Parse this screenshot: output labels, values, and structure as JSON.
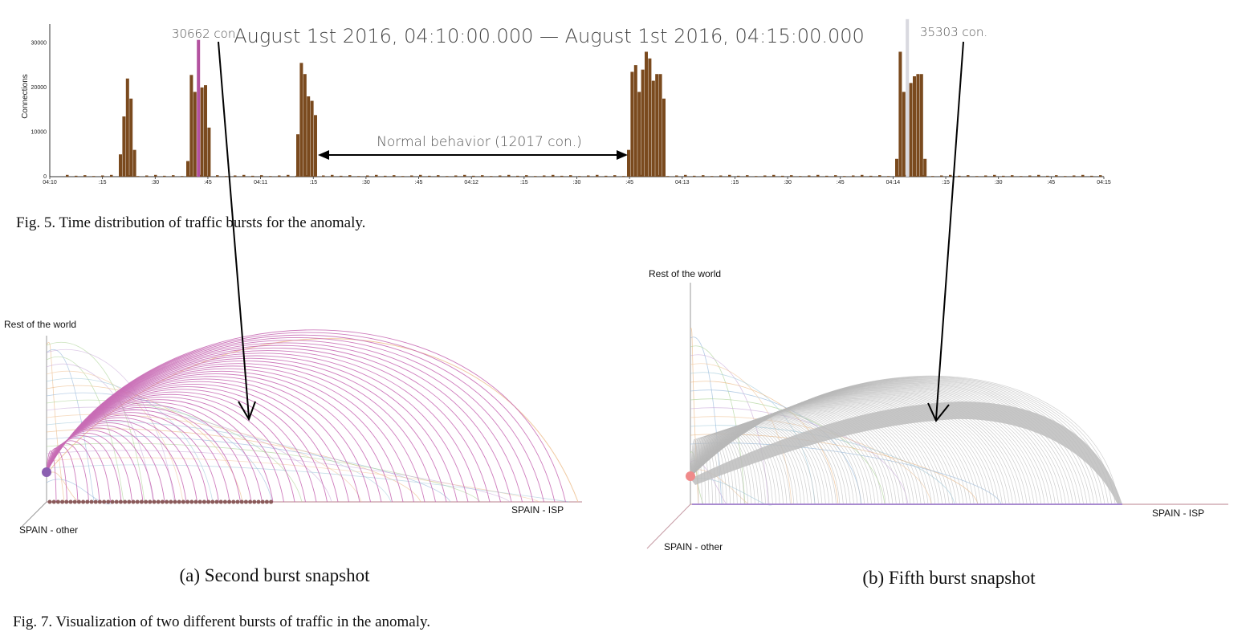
{
  "figure5": {
    "title_range": "August 1st 2016, 04:10:00.000 — August 1st 2016, 04:15:00.000",
    "caption": "Fig. 5.  Time distribution of traffic bursts for the anomaly.",
    "annotation_left": "30662 con.",
    "annotation_right": "35303 con.",
    "annotation_normal": "Normal behavior (12017 con.)",
    "chart_data": {
      "type": "bar",
      "ylabel": "Connections",
      "xlabel": "",
      "ylim": [
        0,
        36000
      ],
      "y_ticks": [
        "0",
        "10000",
        "20000",
        "30000"
      ],
      "x_ticks": [
        "04:10",
        ":15",
        ":30",
        ":45",
        "04:11",
        ":15",
        ":30",
        ":45",
        "04:12",
        ":15",
        ":30",
        ":45",
        "04:13",
        ":15",
        ":30",
        ":45",
        "04:14",
        ":15",
        ":30",
        ":45",
        "04:15"
      ],
      "colors": {
        "bar": "#7a4a1e",
        "highlight_left": "#b3529f",
        "highlight_right": "#d9d9df"
      },
      "bursts": [
        {
          "values": [
            5000,
            13500,
            22000,
            17500,
            6000
          ]
        },
        {
          "values": [
            3500,
            22800,
            19000,
            30662,
            20000,
            20500,
            11000
          ]
        },
        {
          "values": [
            9500,
            25500,
            23000,
            18000,
            17000,
            13800
          ]
        },
        {
          "values": [
            6000,
            23500,
            25000,
            19000,
            24000,
            28000,
            26500,
            21500,
            23000,
            23000,
            17500
          ]
        },
        {
          "values": [
            4000,
            28000,
            19000,
            35303,
            21000,
            22500,
            23000,
            23000,
            4000
          ]
        }
      ],
      "highlighted": [
        {
          "burst": 1,
          "value": 30662,
          "label": "30662 con."
        },
        {
          "burst": 4,
          "value": 35303,
          "label": "35303 con."
        }
      ]
    }
  },
  "figure7": {
    "caption": "Fig. 7.  Visualization of two different bursts of traffic in the anomaly.",
    "panel_a": {
      "subcaption": "(a) Second burst snapshot",
      "axis_top": "Rest of the world",
      "axis_left": "SPAIN - other",
      "axis_right": "SPAIN - ISP",
      "arc_color": "#c96eb6",
      "node_color": "#8b5fb0"
    },
    "panel_b": {
      "subcaption": "(b) Fifth burst snapshot",
      "axis_top": "Rest of the world",
      "axis_left": "SPAIN - other",
      "axis_right": "SPAIN - ISP",
      "arc_color": "#b9b9b9",
      "node_color": "#f08a8a"
    }
  }
}
